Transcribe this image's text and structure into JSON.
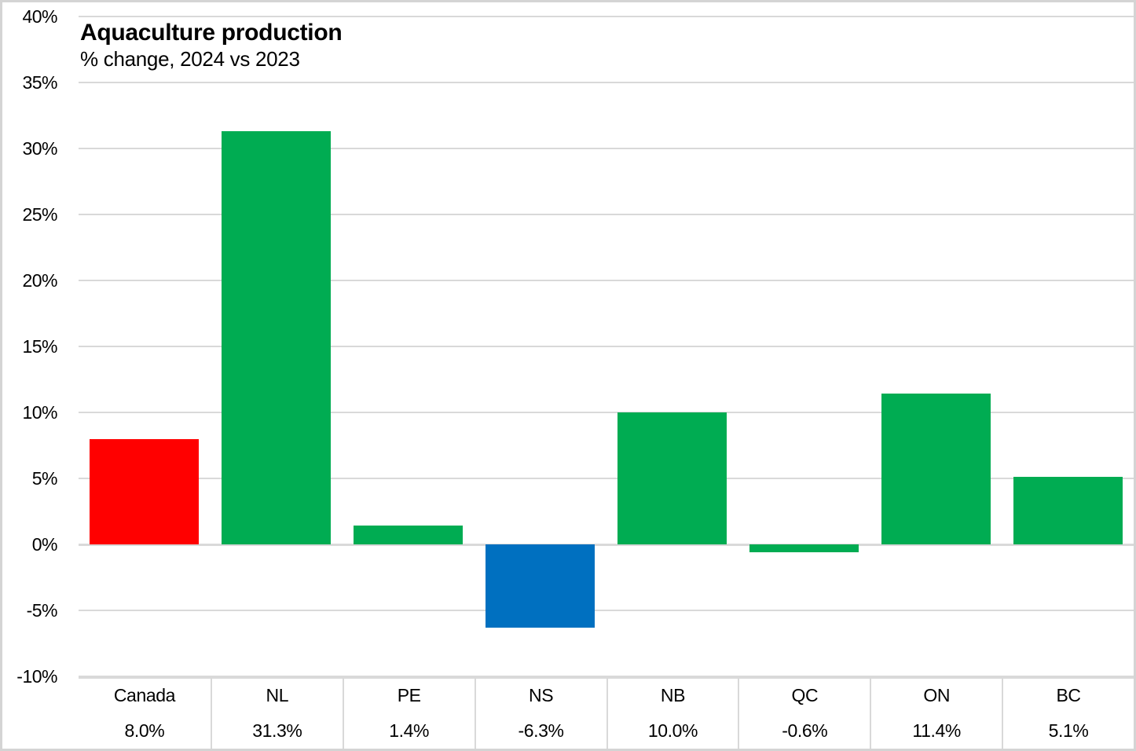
{
  "chart_data": {
    "type": "bar",
    "title": "Aquaculture production",
    "subtitle": "% change, 2024 vs 2023",
    "categories": [
      "Canada",
      "NL",
      "PE",
      "NS",
      "NB",
      "QC",
      "ON",
      "BC"
    ],
    "values": [
      8.0,
      31.3,
      1.4,
      -6.3,
      10.0,
      -0.6,
      11.4,
      5.1
    ],
    "value_labels": [
      "8.0%",
      "31.3%",
      "1.4%",
      "-6.3%",
      "10.0%",
      "-0.6%",
      "11.4%",
      "5.1%"
    ],
    "bar_colors": [
      "#FF0000",
      "#00AC52",
      "#00AC52",
      "#0070C0",
      "#00AC52",
      "#00AC52",
      "#00AC52",
      "#00AC52"
    ],
    "ylim": [
      -10,
      40
    ],
    "ytick_step": 5,
    "ytick_labels": [
      "40%",
      "35%",
      "30%",
      "25%",
      "20%",
      "15%",
      "10%",
      "5%",
      "0%",
      "-5%",
      "-10%"
    ],
    "grid": true,
    "legend": "none",
    "gridline_color": "#d9d9d9",
    "axis_line_color": "#d9d9d9",
    "table_divider_color": "#d9d9d9",
    "text_color": "#000000"
  }
}
